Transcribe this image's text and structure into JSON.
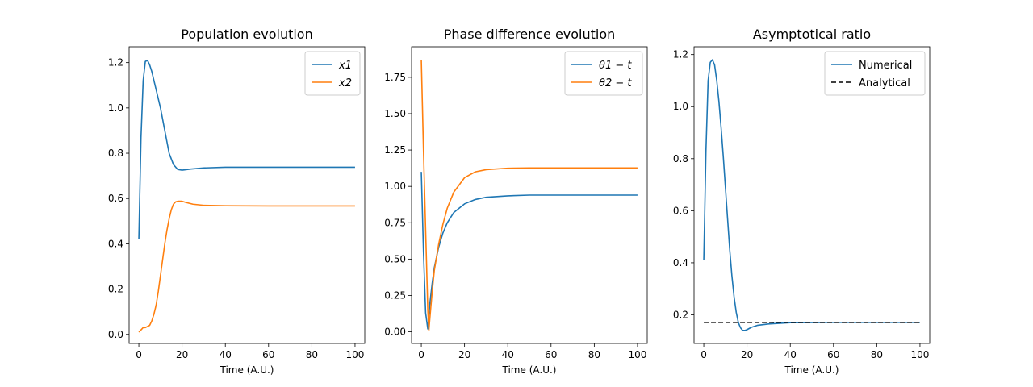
{
  "chart_data": [
    {
      "type": "line",
      "title": "Population evolution",
      "xlabel": "Time (A.U.)",
      "ylabel": "",
      "xlim": [
        -4.5,
        104.5
      ],
      "ylim": [
        -0.04,
        1.27
      ],
      "xticks": [
        0,
        20,
        40,
        60,
        80,
        100
      ],
      "xtick_labels": [
        "0",
        "20",
        "40",
        "60",
        "80",
        "100"
      ],
      "yticks": [
        0.0,
        0.2,
        0.4,
        0.6,
        0.8,
        1.0,
        1.2
      ],
      "ytick_labels": [
        "0.0",
        "0.2",
        "0.4",
        "0.6",
        "0.8",
        "1.0",
        "1.2"
      ],
      "legend_position": "top-right",
      "series": [
        {
          "name": "x1",
          "color": "#1f77b4",
          "dash": "",
          "x": [
            0,
            1,
            2,
            3,
            4,
            5,
            6,
            8,
            10,
            12,
            14,
            16,
            18,
            20,
            24,
            30,
            40,
            60,
            80,
            100
          ],
          "y": [
            0.42,
            0.87,
            1.12,
            1.205,
            1.21,
            1.19,
            1.16,
            1.08,
            1.0,
            0.9,
            0.8,
            0.75,
            0.728,
            0.725,
            0.73,
            0.735,
            0.738,
            0.738,
            0.738,
            0.738
          ]
        },
        {
          "name": "x2",
          "color": "#ff7f0e",
          "dash": "",
          "x": [
            0,
            1,
            2,
            3,
            4,
            5,
            6,
            7,
            8,
            9,
            10,
            11,
            12,
            13,
            14,
            15,
            16,
            17,
            18,
            20,
            22,
            25,
            30,
            40,
            60,
            80,
            100
          ],
          "y": [
            0.01,
            0.02,
            0.03,
            0.03,
            0.035,
            0.04,
            0.06,
            0.09,
            0.13,
            0.19,
            0.26,
            0.33,
            0.4,
            0.46,
            0.51,
            0.55,
            0.575,
            0.585,
            0.588,
            0.588,
            0.582,
            0.575,
            0.57,
            0.568,
            0.567,
            0.567,
            0.567
          ]
        }
      ]
    },
    {
      "type": "line",
      "title": "Phase difference evolution",
      "xlabel": "Time (A.U.)",
      "ylabel": "",
      "xlim": [
        -4.5,
        104.5
      ],
      "ylim": [
        -0.08,
        1.96
      ],
      "xticks": [
        0,
        20,
        40,
        60,
        80,
        100
      ],
      "xtick_labels": [
        "0",
        "20",
        "40",
        "60",
        "80",
        "100"
      ],
      "yticks": [
        0.0,
        0.25,
        0.5,
        0.75,
        1.0,
        1.25,
        1.5,
        1.75
      ],
      "ytick_labels": [
        "0.00",
        "0.25",
        "0.50",
        "0.75",
        "1.00",
        "1.25",
        "1.50",
        "1.75"
      ],
      "legend_position": "top-right",
      "series": [
        {
          "name": "θ1 − t",
          "color": "#1f77b4",
          "dash": "",
          "x": [
            0,
            1,
            2,
            3,
            4,
            5,
            6,
            8,
            10,
            12,
            15,
            20,
            25,
            30,
            40,
            50,
            60,
            80,
            100
          ],
          "y": [
            1.1,
            0.55,
            0.13,
            0.02,
            0.2,
            0.33,
            0.44,
            0.58,
            0.68,
            0.75,
            0.82,
            0.88,
            0.91,
            0.925,
            0.935,
            0.94,
            0.94,
            0.94,
            0.94
          ]
        },
        {
          "name": "θ2 − t",
          "color": "#ff7f0e",
          "dash": "",
          "x": [
            0,
            1,
            2,
            3,
            3.5,
            4,
            5,
            6,
            8,
            10,
            12,
            15,
            20,
            25,
            30,
            40,
            50,
            60,
            80,
            100
          ],
          "y": [
            1.87,
            1.25,
            0.7,
            0.15,
            0.01,
            0.1,
            0.27,
            0.42,
            0.6,
            0.74,
            0.85,
            0.96,
            1.06,
            1.1,
            1.115,
            1.125,
            1.127,
            1.127,
            1.127,
            1.127
          ]
        }
      ]
    },
    {
      "type": "line",
      "title": "Asymptotical ratio",
      "xlabel": "Time (A.U.)",
      "ylabel": "",
      "xlim": [
        -4.5,
        104.5
      ],
      "ylim": [
        0.09,
        1.23
      ],
      "xticks": [
        0,
        20,
        40,
        60,
        80,
        100
      ],
      "xtick_labels": [
        "0",
        "20",
        "40",
        "60",
        "80",
        "100"
      ],
      "yticks": [
        0.2,
        0.4,
        0.6,
        0.8,
        1.0,
        1.2
      ],
      "ytick_labels": [
        "0.2",
        "0.4",
        "0.6",
        "0.8",
        "1.0",
        "1.2"
      ],
      "legend_position": "top-right",
      "series": [
        {
          "name": "Numerical",
          "color": "#1f77b4",
          "dash": "",
          "x": [
            0,
            1,
            2,
            3,
            4,
            5,
            6,
            7,
            8,
            9,
            10,
            11,
            12,
            13,
            14,
            15,
            16,
            17,
            18,
            19,
            20,
            22,
            25,
            30,
            40,
            60,
            80,
            100
          ],
          "y": [
            0.41,
            0.83,
            1.1,
            1.17,
            1.18,
            1.16,
            1.1,
            1.02,
            0.92,
            0.81,
            0.69,
            0.57,
            0.45,
            0.35,
            0.27,
            0.21,
            0.17,
            0.15,
            0.14,
            0.14,
            0.143,
            0.152,
            0.16,
            0.165,
            0.17,
            0.171,
            0.171,
            0.171
          ]
        },
        {
          "name": "Analytical",
          "color": "#000000",
          "dash": "6,3",
          "x": [
            0,
            100
          ],
          "y": [
            0.171,
            0.171
          ]
        }
      ]
    }
  ]
}
